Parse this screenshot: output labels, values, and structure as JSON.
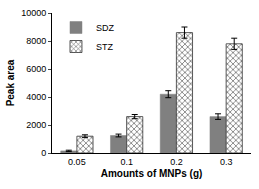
{
  "chart_data": {
    "type": "bar",
    "x_label": "Amounts of MNPs (g)",
    "y_label": "Peak area",
    "categories": [
      "0.05",
      "0.1",
      "0.2",
      "0.3"
    ],
    "series": [
      {
        "name": "SDZ",
        "color": "#808080",
        "values": [
          150,
          1250,
          4200,
          2600
        ],
        "errors": [
          50,
          100,
          250,
          200
        ]
      },
      {
        "name": "STZ",
        "color": "#555555",
        "marker": "checker",
        "values": [
          1200,
          2600,
          8600,
          7800
        ],
        "errors": [
          100,
          150,
          400,
          400
        ]
      }
    ],
    "ylim": [
      0,
      10000
    ],
    "yticks": [
      0,
      2000,
      4000,
      6000,
      8000,
      10000
    ],
    "grid": false,
    "legend": "top-left"
  }
}
